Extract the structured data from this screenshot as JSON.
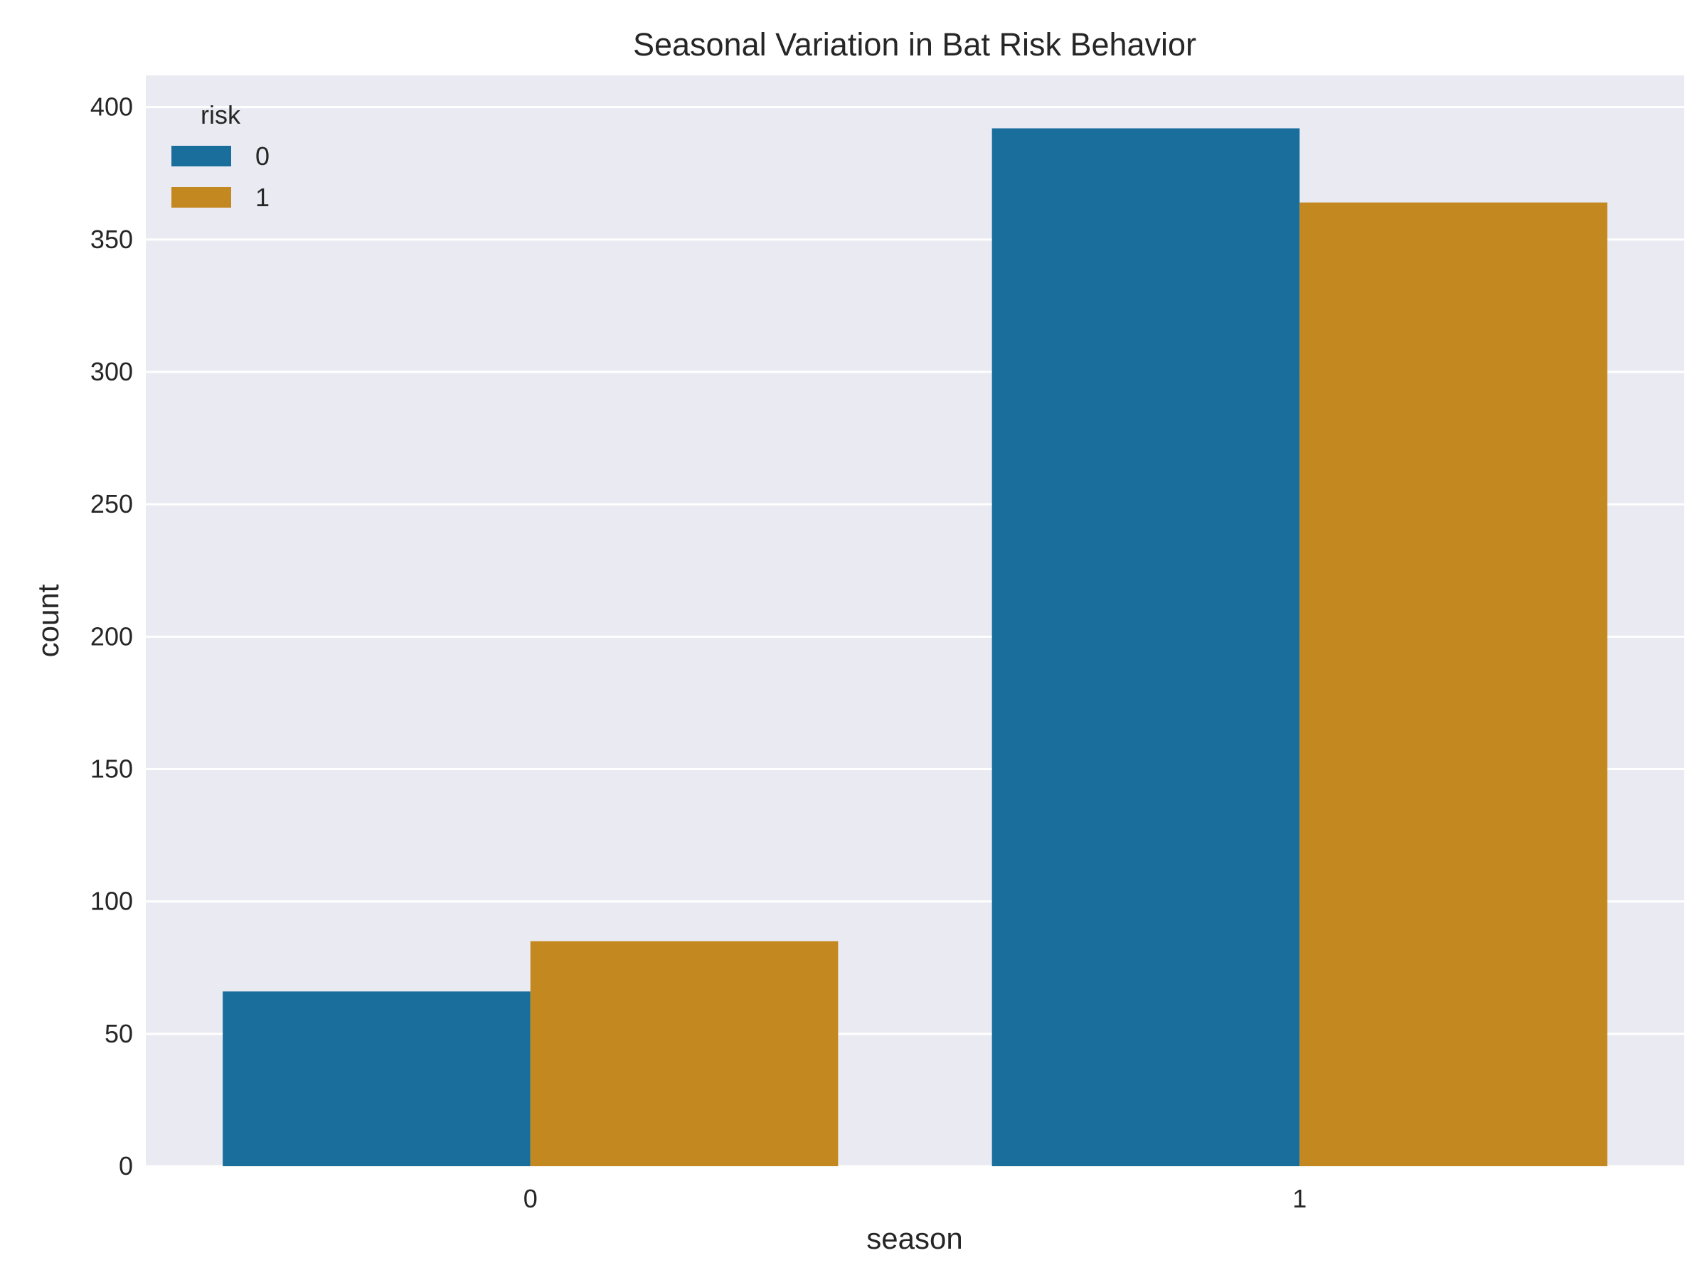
{
  "chart_data": {
    "type": "bar",
    "title": "Seasonal Variation in Bat Risk Behavior",
    "xlabel": "season",
    "ylabel": "count",
    "categories": [
      "0",
      "1"
    ],
    "series": [
      {
        "name": "0",
        "values": [
          66,
          392
        ],
        "color": "#1a6e9c"
      },
      {
        "name": "1",
        "values": [
          85,
          364
        ],
        "color": "#c38820"
      }
    ],
    "ylim": [
      0,
      412
    ],
    "yticks": [
      0,
      50,
      100,
      150,
      200,
      250,
      300,
      350,
      400
    ],
    "grid": true,
    "legend": {
      "title": "risk",
      "placement": "top-left"
    },
    "colors": {
      "plot_background": "#eaeaf2",
      "grid": "#ffffff",
      "text": "#262626"
    }
  }
}
